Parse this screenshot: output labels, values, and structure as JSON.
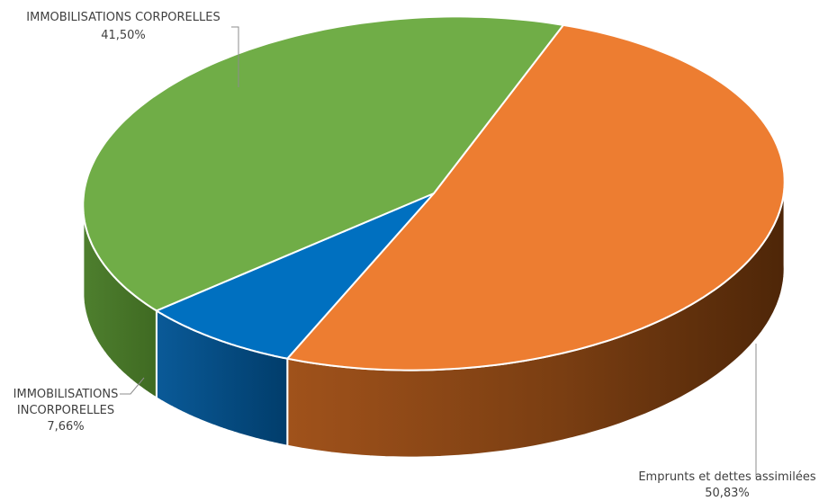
{
  "chart_data": {
    "type": "pie",
    "title": "",
    "slices": [
      {
        "label": "Emprunts et dettes assimilées",
        "value_text": "50,83%",
        "value": 50.83,
        "color": "#ED7D31",
        "side_color": "#7A3E12"
      },
      {
        "label": "IMMOBILISATIONS INCORPORELLES",
        "label_lines": [
          "IMMOBILISATIONS",
          "INCORPORELLES"
        ],
        "value_text": "7,66%",
        "value": 7.66,
        "color": "#0070C0",
        "side_color": "#013D6B"
      },
      {
        "label": "IMMOBILISATIONS CORPORELLES",
        "value_text": "41,50%",
        "value": 41.5,
        "color": "#70AD47",
        "side_color": "#3F6A22"
      }
    ],
    "legend": "none",
    "style": "3d"
  }
}
